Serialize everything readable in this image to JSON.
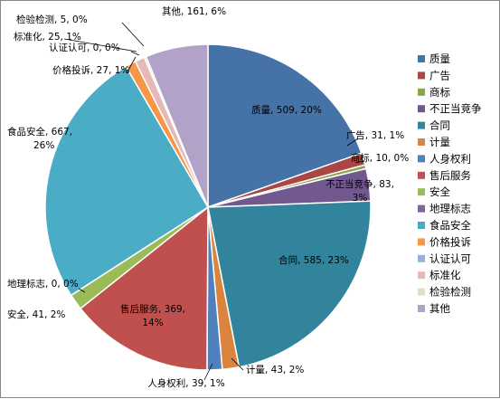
{
  "chart_data": {
    "type": "pie",
    "title": "",
    "legend_position": "right",
    "slices": [
      {
        "name": "质量",
        "value": 509,
        "percent": "20%",
        "color": "#4572A7",
        "label_lines": [
          "质量, 509, 20%"
        ]
      },
      {
        "name": "广告",
        "value": 31,
        "percent": "1%",
        "color": "#AA4643",
        "label_lines": [
          "广告, 31, 1%"
        ]
      },
      {
        "name": "商标",
        "value": 10,
        "percent": "0%",
        "color": "#89A54E",
        "label_lines": [
          "商标, 10, 0%"
        ]
      },
      {
        "name": "不正当竞争",
        "value": 83,
        "percent": "3%",
        "color": "#71588F",
        "label_lines": [
          "不正当竞争, 83,",
          "3%"
        ]
      },
      {
        "name": "合同",
        "value": 585,
        "percent": "23%",
        "color": "#31849B",
        "label_lines": [
          "合同, 585, 23%"
        ]
      },
      {
        "name": "计量",
        "value": 43,
        "percent": "2%",
        "color": "#DB843D",
        "label_lines": [
          "计量, 43, 2%"
        ]
      },
      {
        "name": "人身权利",
        "value": 39,
        "percent": "1%",
        "color": "#4F81BD",
        "label_lines": [
          "人身权利, 39, 1%"
        ]
      },
      {
        "name": "售后服务",
        "value": 369,
        "percent": "14%",
        "color": "#C0504D",
        "label_lines": [
          "售后服务, 369,",
          "14%"
        ]
      },
      {
        "name": "安全",
        "value": 41,
        "percent": "2%",
        "color": "#9BBB59",
        "label_lines": [
          "安全, 41, 2%"
        ]
      },
      {
        "name": "地理标志",
        "value": 0,
        "percent": "0%",
        "color": "#8064A2",
        "label_lines": [
          "地理标志, 0, 0%"
        ]
      },
      {
        "name": "食品安全",
        "value": 667,
        "percent": "26%",
        "color": "#4BACC6",
        "label_lines": [
          "食品安全, 667,",
          "26%"
        ]
      },
      {
        "name": "价格投诉",
        "value": 27,
        "percent": "1%",
        "color": "#F79646",
        "label_lines": [
          "价格投诉, 27, 1%"
        ]
      },
      {
        "name": "认证认可",
        "value": 0,
        "percent": "0%",
        "color": "#95B3D7",
        "label_lines": [
          "认证认可, 0, 0%"
        ]
      },
      {
        "name": "标准化",
        "value": 25,
        "percent": "1%",
        "color": "#E6B9B8",
        "label_lines": [
          "标准化, 25, 1%"
        ]
      },
      {
        "name": "检验检测",
        "value": 5,
        "percent": "0%",
        "color": "#D7E4BD",
        "label_lines": [
          "检验检测, 5, 0%"
        ]
      },
      {
        "name": "其他",
        "value": 161,
        "percent": "6%",
        "color": "#B3A2C7",
        "label_lines": [
          "其他, 161, 6%"
        ]
      }
    ]
  }
}
